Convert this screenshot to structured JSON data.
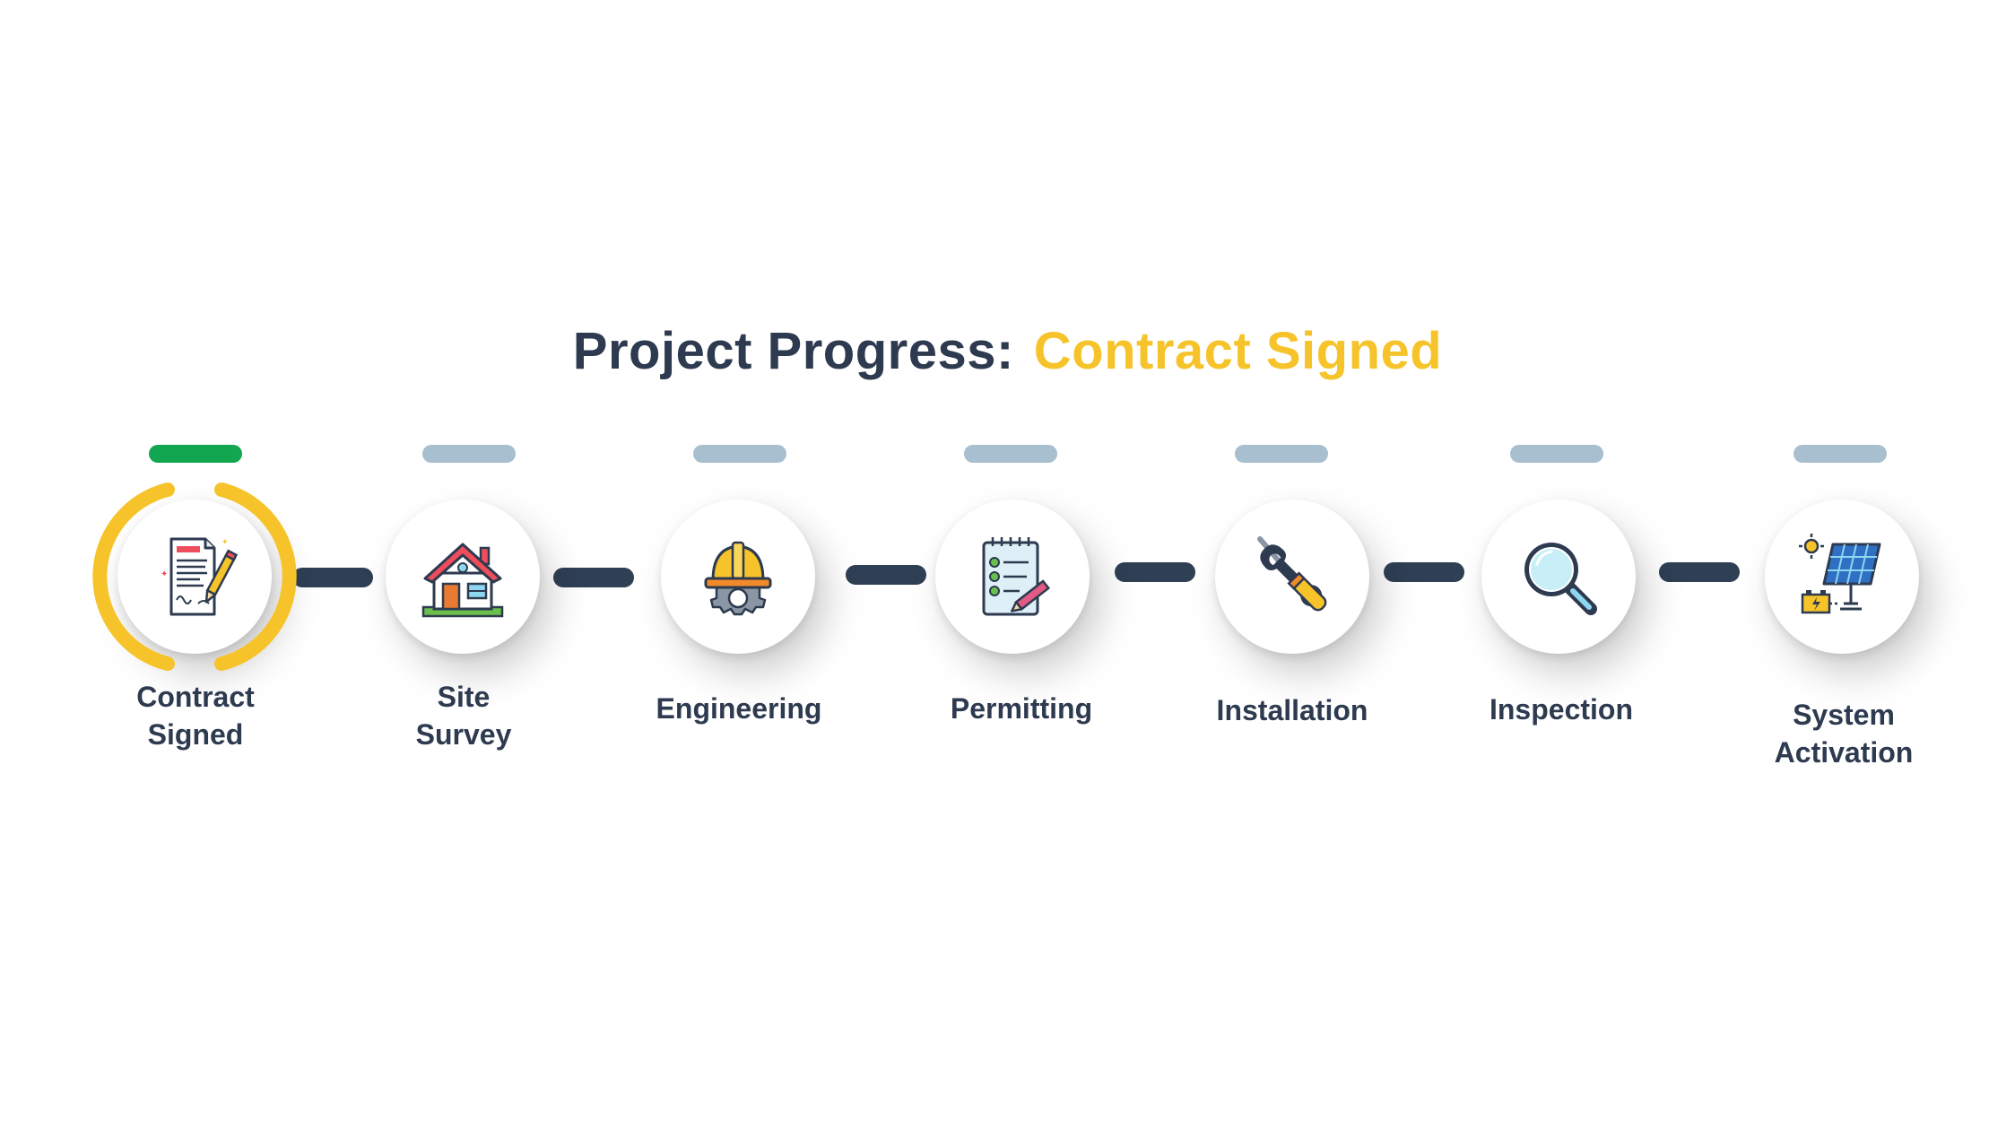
{
  "header": {
    "prefix": "Project Progress:",
    "status": "Contract Signed"
  },
  "colors": {
    "title": "#2d3a4f",
    "status": "#f6c42a",
    "complete_bar": "#13a650",
    "pending_bar": "#a7bfcf",
    "connector": "#2f3f54",
    "active_ring": "#f6c42a"
  },
  "steps": [
    {
      "lines": [
        "Contract",
        "Signed"
      ],
      "icon": "contract-icon",
      "state": "active",
      "progress": 1
    },
    {
      "lines": [
        "Site",
        "Survey"
      ],
      "icon": "house-icon",
      "state": "pending",
      "progress": 0
    },
    {
      "lines": [
        "Engineering"
      ],
      "icon": "hardhat-gear-icon",
      "state": "pending",
      "progress": 0
    },
    {
      "lines": [
        "Permitting"
      ],
      "icon": "checklist-icon",
      "state": "pending",
      "progress": 0
    },
    {
      "lines": [
        "Installation"
      ],
      "icon": "wrench-screwdriver-icon",
      "state": "pending",
      "progress": 0
    },
    {
      "lines": [
        "Inspection"
      ],
      "icon": "magnifier-icon",
      "state": "pending",
      "progress": 0
    },
    {
      "lines": [
        "System",
        "Activation"
      ],
      "icon": "solar-panel-icon",
      "state": "pending",
      "progress": 0
    }
  ]
}
